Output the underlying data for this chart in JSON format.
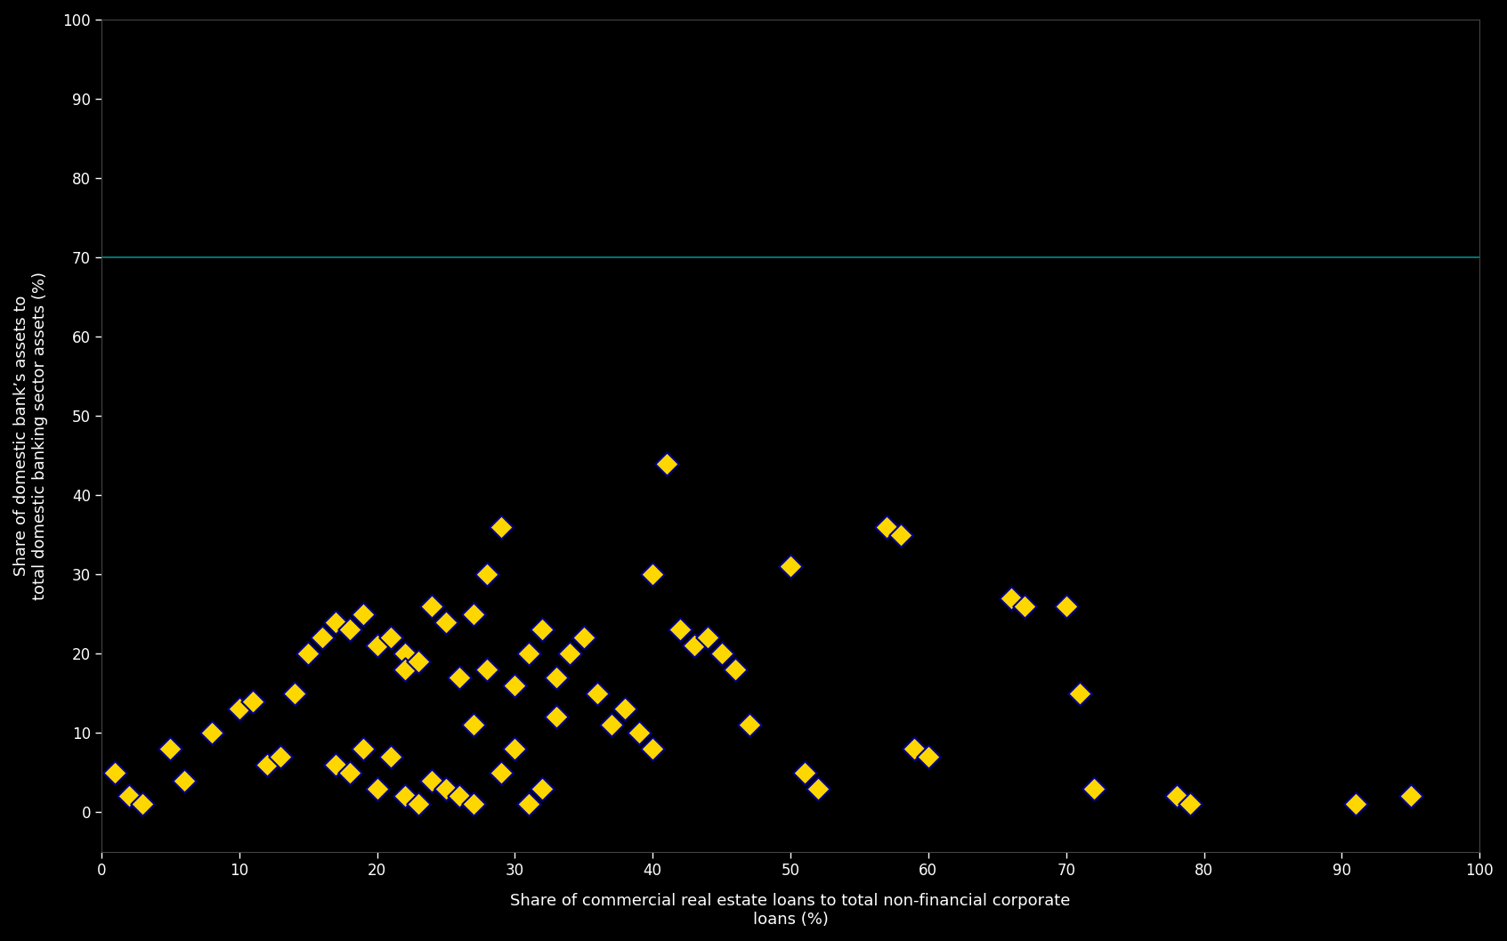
{
  "xlabel": "Share of commercial real estate loans to total non-financial corporate\nloans (%)",
  "ylabel": "Share of domestic bank’s assets to\ntotal domestic banking sector assets (%)",
  "xlim": [
    0,
    100
  ],
  "ylim": [
    -5,
    100
  ],
  "xticks": [
    0,
    10,
    20,
    30,
    40,
    50,
    60,
    70,
    80,
    90,
    100
  ],
  "yticks": [
    0,
    10,
    20,
    30,
    40,
    50,
    60,
    70,
    80,
    90,
    100
  ],
  "hline_y": 70,
  "hline_color": "#008B8B",
  "background_color": "#000000",
  "marker_face_color": "#FFD700",
  "marker_edge_color": "#00008B",
  "marker_size": 180,
  "scatter_x": [
    1,
    2,
    3,
    5,
    6,
    8,
    10,
    11,
    12,
    13,
    14,
    15,
    16,
    17,
    17,
    18,
    18,
    19,
    19,
    20,
    20,
    21,
    21,
    22,
    22,
    22,
    23,
    23,
    24,
    24,
    25,
    25,
    26,
    26,
    27,
    27,
    27,
    28,
    28,
    29,
    29,
    30,
    30,
    31,
    31,
    32,
    32,
    33,
    33,
    34,
    35,
    36,
    37,
    38,
    39,
    40,
    40,
    41,
    42,
    43,
    44,
    45,
    46,
    47,
    50,
    51,
    52,
    57,
    58,
    59,
    60,
    66,
    67,
    70,
    71,
    72,
    78,
    79,
    91,
    95
  ],
  "scatter_y": [
    5,
    2,
    1,
    8,
    4,
    10,
    13,
    14,
    6,
    7,
    15,
    20,
    22,
    24,
    6,
    23,
    5,
    25,
    8,
    21,
    3,
    22,
    7,
    20,
    18,
    2,
    19,
    1,
    26,
    4,
    24,
    3,
    17,
    2,
    25,
    1,
    11,
    30,
    18,
    36,
    5,
    16,
    8,
    20,
    1,
    23,
    3,
    17,
    12,
    20,
    22,
    15,
    11,
    13,
    10,
    30,
    8,
    44,
    23,
    21,
    22,
    20,
    18,
    11,
    31,
    5,
    3,
    36,
    35,
    8,
    7,
    27,
    26,
    26,
    15,
    3,
    2,
    1,
    1,
    2
  ],
  "text_color": "#FFFFFF",
  "tick_color": "#FFFFFF",
  "axis_color": "#444444",
  "fontsize_label": 13,
  "fontsize_tick": 12
}
